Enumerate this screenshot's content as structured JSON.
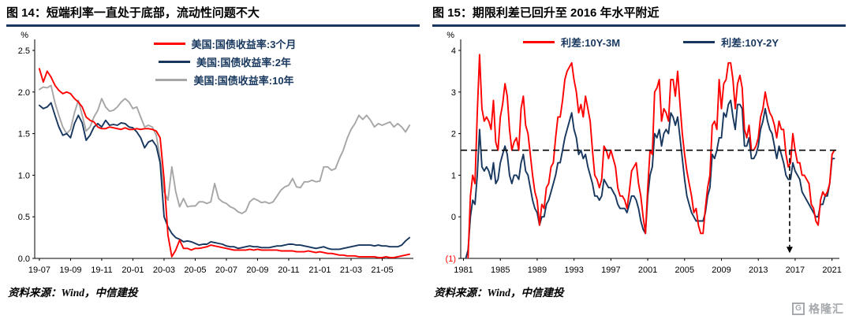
{
  "page": {
    "background": "#FFFFFF",
    "accent_color": "#17375E"
  },
  "watermark": {
    "label": "格隆汇",
    "icon_letter": "G",
    "color": "#A6A9AD"
  },
  "left": {
    "title": "图 14：短端利率一直处于底部，流动性问题不大",
    "source": "资料来源：Wind，中信建投"
  },
  "right": {
    "title": "图 15：期限利差已回升至 2016 年水平附近",
    "source": "资料来源：Wind，中信建投"
  },
  "chart_data": [
    {
      "type": "line",
      "title": "短端利率一直处于底部，流动性问题不大",
      "ylabel": "%",
      "ylim": [
        0,
        2.5
      ],
      "yticks": [
        0,
        0.5,
        1,
        1.5,
        2,
        2.5
      ],
      "ytick_labels": [
        "0.0",
        "0.5",
        "1.0",
        "1.5",
        "2.0",
        "2.5"
      ],
      "ytick_label_colors": [
        "#000000",
        "#000000",
        "#000000",
        "#000000",
        "#000000",
        "#000000"
      ],
      "xlim": [
        -0.3,
        24
      ],
      "xticks": [
        0,
        2,
        4,
        6,
        8,
        10,
        12,
        14,
        16,
        18,
        20,
        22
      ],
      "xtick_labels": [
        "19-07",
        "19-09",
        "19-11",
        "20-01",
        "20-03",
        "20-05",
        "20-07",
        "20-09",
        "20-11",
        "21-01",
        "21-03",
        "21-05"
      ],
      "x_start": 0,
      "x_step": 0.25,
      "x_unit": "months since 2019-07, weekly points",
      "grid": false,
      "legend_position": "top-center-stacked",
      "series": [
        {
          "id": "us-treasury-3m",
          "name": "美国:国债收益率:3个月",
          "color": "#FF0000",
          "values": [
            2.28,
            2.12,
            2.25,
            2.18,
            2.08,
            2.02,
            1.98,
            2.0,
            1.98,
            1.92,
            1.88,
            1.82,
            1.7,
            1.66,
            1.64,
            1.58,
            1.56,
            1.56,
            1.58,
            1.57,
            1.56,
            1.55,
            1.57,
            1.55,
            1.55,
            1.56,
            1.55,
            1.56,
            1.56,
            1.55,
            1.53,
            1.45,
            0.95,
            0.28,
            0.02,
            0.1,
            0.22,
            0.12,
            0.12,
            0.1,
            0.12,
            0.12,
            0.13,
            0.14,
            0.16,
            0.15,
            0.14,
            0.13,
            0.12,
            0.11,
            0.1,
            0.1,
            0.1,
            0.1,
            0.11,
            0.1,
            0.11,
            0.1,
            0.1,
            0.1,
            0.1,
            0.1,
            0.09,
            0.09,
            0.09,
            0.09,
            0.08,
            0.08,
            0.08,
            0.09,
            0.08,
            0.07,
            0.08,
            0.07,
            0.06,
            0.06,
            0.05,
            0.04,
            0.04,
            0.03,
            0.03,
            0.03,
            0.02,
            0.02,
            0.02,
            0.02,
            0.02,
            0.01,
            0.01,
            0.02,
            0.01,
            0.01,
            0.02,
            0.03,
            0.04,
            0.05
          ]
        },
        {
          "id": "us-treasury-2y",
          "name": "美国:国债收益率:2年",
          "color": "#17375E",
          "values": [
            1.84,
            1.8,
            1.82,
            1.87,
            1.72,
            1.58,
            1.48,
            1.5,
            1.45,
            1.62,
            1.72,
            1.63,
            1.42,
            1.48,
            1.58,
            1.62,
            1.58,
            1.66,
            1.6,
            1.61,
            1.6,
            1.63,
            1.62,
            1.58,
            1.57,
            1.52,
            1.45,
            1.33,
            1.4,
            1.42,
            1.35,
            1.15,
            0.5,
            0.38,
            0.3,
            0.25,
            0.23,
            0.2,
            0.21,
            0.2,
            0.18,
            0.16,
            0.17,
            0.17,
            0.2,
            0.19,
            0.18,
            0.17,
            0.15,
            0.14,
            0.14,
            0.12,
            0.13,
            0.14,
            0.15,
            0.14,
            0.14,
            0.13,
            0.13,
            0.13,
            0.14,
            0.15,
            0.15,
            0.16,
            0.17,
            0.17,
            0.16,
            0.16,
            0.15,
            0.14,
            0.13,
            0.12,
            0.13,
            0.14,
            0.12,
            0.11,
            0.11,
            0.11,
            0.12,
            0.13,
            0.14,
            0.15,
            0.16,
            0.16,
            0.16,
            0.16,
            0.15,
            0.16,
            0.15,
            0.15,
            0.14,
            0.14,
            0.14,
            0.16,
            0.21,
            0.25
          ]
        },
        {
          "id": "us-treasury-10y",
          "name": "美国:国债收益率:10年",
          "color": "#A6A6A6",
          "values": [
            2.03,
            2.06,
            2.05,
            2.08,
            1.87,
            1.72,
            1.58,
            1.5,
            1.55,
            1.75,
            1.9,
            1.72,
            1.53,
            1.58,
            1.7,
            1.78,
            1.92,
            1.82,
            1.77,
            1.78,
            1.82,
            1.88,
            1.92,
            1.88,
            1.8,
            1.82,
            1.7,
            1.58,
            1.6,
            1.58,
            1.48,
            1.2,
            0.8,
            0.7,
            1.1,
            0.8,
            0.62,
            0.72,
            0.62,
            0.63,
            0.63,
            0.68,
            0.68,
            0.66,
            0.68,
            0.9,
            0.72,
            0.68,
            0.66,
            0.62,
            0.6,
            0.56,
            0.54,
            0.57,
            0.68,
            0.72,
            0.7,
            0.67,
            0.68,
            0.66,
            0.68,
            0.75,
            0.82,
            0.86,
            0.88,
            0.96,
            0.86,
            0.85,
            0.92,
            0.92,
            0.94,
            0.92,
            0.93,
            1.1,
            1.1,
            1.06,
            1.08,
            1.2,
            1.3,
            1.44,
            1.55,
            1.62,
            1.72,
            1.67,
            1.72,
            1.66,
            1.58,
            1.62,
            1.6,
            1.62,
            1.64,
            1.58,
            1.62,
            1.58,
            1.52,
            1.6
          ]
        }
      ]
    },
    {
      "type": "line",
      "title": "期限利差已回升至 2016 年水平附近",
      "ylabel": "%",
      "ylim": [
        -1,
        4
      ],
      "yticks": [
        -1,
        0,
        1,
        2,
        3,
        4
      ],
      "ytick_labels": [
        "(1)",
        "0",
        "1",
        "2",
        "3",
        "4"
      ],
      "ytick_label_colors": [
        "#FF0000",
        "#000000",
        "#000000",
        "#000000",
        "#000000",
        "#000000"
      ],
      "xlim": [
        1980.7,
        2021.8
      ],
      "xticks": [
        1981,
        1985,
        1989,
        1993,
        1997,
        2001,
        2005,
        2009,
        2013,
        2017,
        2021
      ],
      "xtick_labels": [
        "1981",
        "1985",
        "1989",
        "1993",
        "1997",
        "2001",
        "2005",
        "2009",
        "2013",
        "2017",
        "2021"
      ],
      "x_start": 1981,
      "x_step": 0.25,
      "x_unit": "year, quarterly points",
      "grid": false,
      "legend_position": "top-center-row",
      "series": [
        {
          "id": "spread-10y-3m",
          "name": "利差:10Y-3M",
          "color": "#FF0000",
          "values": [
            -1.2,
            -2.5,
            -1.0,
            0.5,
            1.0,
            0.8,
            2.5,
            3.9,
            2.6,
            2.3,
            2.4,
            2.3,
            2.1,
            2.8,
            1.8,
            1.6,
            2.4,
            2.7,
            3.2,
            2.9,
            2.1,
            1.6,
            1.8,
            1.9,
            1.6,
            2.6,
            2.9,
            2.2,
            2.0,
            1.5,
            1.0,
            0.6,
            0.4,
            -0.2,
            0.3,
            0.2,
            0.7,
            0.8,
            1.2,
            1.3,
            1.9,
            2.4,
            2.4,
            2.8,
            3.3,
            3.5,
            3.6,
            3.7,
            3.3,
            3.0,
            2.5,
            2.7,
            2.4,
            2.9,
            2.6,
            2.3,
            1.6,
            1.0,
            0.9,
            0.7,
            0.9,
            1.7,
            1.6,
            1.4,
            1.6,
            1.4,
            1.2,
            0.7,
            0.5,
            0.5,
            0.4,
            0.2,
            0.6,
            1.1,
            1.2,
            1.3,
            0.8,
            0.5,
            0.0,
            -0.4,
            0.7,
            1.6,
            1.5,
            3.0,
            3.1,
            3.3,
            2.3,
            2.6,
            2.5,
            2.3,
            3.3,
            3.3,
            2.9,
            3.5,
            2.7,
            2.0,
            1.5,
            1.1,
            0.8,
            0.5,
            0.1,
            0.2,
            -0.2,
            -0.4,
            -0.4,
            0.2,
            0.7,
            1.0,
            2.2,
            2.3,
            2.1,
            3.3,
            2.6,
            3.2,
            3.3,
            3.7,
            3.7,
            3.3,
            2.6,
            3.2,
            3.4,
            3.1,
            2.1,
            1.9,
            2.2,
            1.6,
            1.6,
            1.7,
            1.9,
            2.4,
            2.6,
            3.0,
            2.7,
            2.5,
            2.4,
            2.2,
            1.9,
            2.3,
            2.1,
            2.1,
            1.5,
            1.2,
            1.3,
            2.0,
            1.6,
            1.3,
            1.3,
            1.0,
            1.0,
            0.9,
            0.8,
            0.3,
            0.2,
            -0.1,
            -0.2,
            0.4,
            0.6,
            0.5,
            0.6,
            0.8,
            1.5,
            1.6
          ]
        },
        {
          "id": "spread-10y-2y",
          "name": "利差:10Y-2Y",
          "color": "#17375E",
          "values": [
            -1.6,
            -1.0,
            -0.8,
            0.0,
            0.4,
            0.3,
            1.0,
            2.1,
            1.2,
            1.1,
            1.2,
            1.1,
            0.9,
            1.3,
            0.8,
            0.9,
            1.3,
            1.5,
            1.7,
            1.5,
            1.0,
            0.8,
            1.0,
            1.0,
            0.9,
            1.3,
            1.5,
            1.1,
            1.0,
            0.7,
            0.4,
            0.2,
            0.1,
            -0.2,
            0.0,
            0.0,
            0.3,
            0.4,
            0.6,
            0.8,
            1.0,
            1.3,
            1.3,
            1.6,
            1.9,
            2.1,
            2.3,
            2.5,
            2.1,
            1.9,
            1.5,
            1.6,
            1.4,
            1.5,
            1.2,
            1.0,
            0.8,
            0.5,
            0.5,
            0.4,
            0.5,
            0.9,
            0.8,
            0.7,
            0.7,
            0.6,
            0.5,
            0.3,
            0.2,
            0.2,
            0.2,
            0.1,
            0.3,
            0.5,
            0.5,
            0.4,
            0.2,
            -0.1,
            -0.3,
            -0.4,
            0.5,
            1.0,
            1.2,
            2.0,
            1.9,
            2.1,
            1.7,
            2.0,
            2.1,
            2.0,
            2.5,
            2.4,
            2.2,
            2.4,
            1.9,
            1.4,
            0.9,
            0.5,
            0.3,
            0.1,
            0.0,
            -0.1,
            -0.1,
            -0.1,
            -0.1,
            0.1,
            0.5,
            0.7,
            1.5,
            1.4,
            1.6,
            1.9,
            1.9,
            2.5,
            2.4,
            2.7,
            2.8,
            2.4,
            2.1,
            2.7,
            2.7,
            2.6,
            1.7,
            1.7,
            1.9,
            1.4,
            1.4,
            1.5,
            1.7,
            2.1,
            2.3,
            2.6,
            2.3,
            2.1,
            2.0,
            1.7,
            1.4,
            1.7,
            1.5,
            1.3,
            1.0,
            0.9,
            0.9,
            1.3,
            1.1,
            1.0,
            0.9,
            0.6,
            0.5,
            0.4,
            0.3,
            0.2,
            0.1,
            0.0,
            0.0,
            0.3,
            0.3,
            0.5,
            0.5,
            0.8,
            1.4,
            1.4
          ]
        }
      ],
      "annotations": {
        "hline": {
          "y": 1.6,
          "style": "dashed",
          "color": "#000000"
        },
        "varrow": {
          "x": 2016.4,
          "y_from": 1.6,
          "y_to": -0.72,
          "style": "dashed",
          "color": "#000000"
        }
      }
    }
  ]
}
